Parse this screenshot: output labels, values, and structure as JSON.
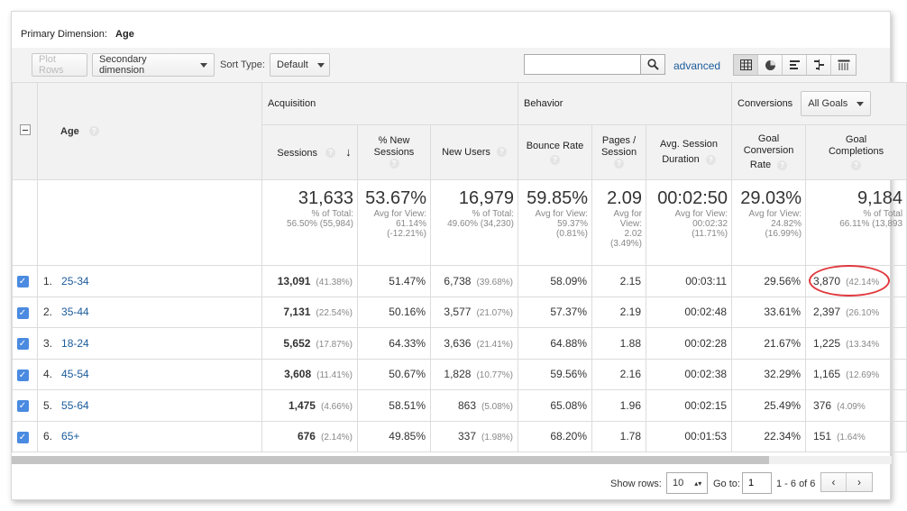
{
  "primary_dimension": {
    "label": "Primary Dimension:",
    "value": "Age"
  },
  "toolbar": {
    "plot_rows": "Plot Rows",
    "secondary_dimension": "Secondary dimension",
    "sort_type_label": "Sort Type:",
    "sort_type_value": "Default",
    "search_placeholder": "",
    "advanced": "advanced"
  },
  "table": {
    "groups": {
      "acquisition": "Acquisition",
      "behavior": "Behavior",
      "conversions": "Conversions",
      "goals_select": "All Goals"
    },
    "columns": {
      "age": "Age",
      "sessions": "Sessions",
      "new_sessions_1": "% New",
      "new_sessions_2": "Sessions",
      "new_users": "New Users",
      "bounce_rate": "Bounce Rate",
      "pages_1": "Pages /",
      "pages_2": "Session",
      "duration_1": "Avg. Session",
      "duration_2": "Duration",
      "conv_1": "Goal",
      "conv_2": "Conversion",
      "conv_3": "Rate",
      "comp_1": "Goal",
      "comp_2": "Completions"
    },
    "totals": {
      "sessions": {
        "value": "31,633",
        "sub1": "% of Total:",
        "sub2": "56.50% (55,984)"
      },
      "new_sessions": {
        "value": "53.67%",
        "sub1": "Avg for View:",
        "sub2": "61.14%",
        "sub3": "(-12.21%)"
      },
      "new_users": {
        "value": "16,979",
        "sub1": "% of Total:",
        "sub2": "49.60% (34,230)"
      },
      "bounce_rate": {
        "value": "59.85%",
        "sub1": "Avg for View:",
        "sub2": "59.37%",
        "sub3": "(0.81%)"
      },
      "pages": {
        "value": "2.09",
        "sub1": "Avg for",
        "sub2": "View:",
        "sub3": "2.02",
        "sub4": "(3.49%)"
      },
      "duration": {
        "value": "00:02:50",
        "sub1": "Avg for View:",
        "sub2": "00:02:32",
        "sub3": "(11.71%)"
      },
      "conv_rate": {
        "value": "29.03%",
        "sub1": "Avg for View:",
        "sub2": "24.82%",
        "sub3": "(16.99%)"
      },
      "completions": {
        "value": "9,184",
        "sub1": "% of Total",
        "sub2": "66.11% (13,893"
      }
    },
    "rows": [
      {
        "idx": "1.",
        "age": "25-34",
        "sessions": "13,091",
        "sessions_pct": "(41.38%)",
        "new_sessions": "51.47%",
        "new_users": "6,738",
        "new_users_pct": "(39.68%)",
        "bounce": "58.09%",
        "pages": "2.15",
        "duration": "00:03:11",
        "conv": "29.56%",
        "comp": "3,870",
        "comp_pct": "(42.14%"
      },
      {
        "idx": "2.",
        "age": "35-44",
        "sessions": "7,131",
        "sessions_pct": "(22.54%)",
        "new_sessions": "50.16%",
        "new_users": "3,577",
        "new_users_pct": "(21.07%)",
        "bounce": "57.37%",
        "pages": "2.19",
        "duration": "00:02:48",
        "conv": "33.61%",
        "comp": "2,397",
        "comp_pct": "(26.10%"
      },
      {
        "idx": "3.",
        "age": "18-24",
        "sessions": "5,652",
        "sessions_pct": "(17.87%)",
        "new_sessions": "64.33%",
        "new_users": "3,636",
        "new_users_pct": "(21.41%)",
        "bounce": "64.88%",
        "pages": "1.88",
        "duration": "00:02:28",
        "conv": "21.67%",
        "comp": "1,225",
        "comp_pct": "(13.34%"
      },
      {
        "idx": "4.",
        "age": "45-54",
        "sessions": "3,608",
        "sessions_pct": "(11.41%)",
        "new_sessions": "50.67%",
        "new_users": "1,828",
        "new_users_pct": "(10.77%)",
        "bounce": "59.56%",
        "pages": "2.16",
        "duration": "00:02:38",
        "conv": "32.29%",
        "comp": "1,165",
        "comp_pct": "(12.69%"
      },
      {
        "idx": "5.",
        "age": "55-64",
        "sessions": "1,475",
        "sessions_pct": "(4.66%)",
        "new_sessions": "58.51%",
        "new_users": "863",
        "new_users_pct": "(5.08%)",
        "bounce": "65.08%",
        "pages": "1.96",
        "duration": "00:02:15",
        "conv": "25.49%",
        "comp": "376",
        "comp_pct": "(4.09%"
      },
      {
        "idx": "6.",
        "age": "65+",
        "sessions": "676",
        "sessions_pct": "(2.14%)",
        "new_sessions": "49.85%",
        "new_users": "337",
        "new_users_pct": "(1.98%)",
        "bounce": "68.20%",
        "pages": "1.78",
        "duration": "00:01:53",
        "conv": "22.34%",
        "comp": "151",
        "comp_pct": "(1.64%"
      }
    ]
  },
  "footer": {
    "show_rows_label": "Show rows:",
    "show_rows_value": "10",
    "goto_label": "Go to:",
    "goto_value": "1",
    "range": "1 - 6 of 6",
    "prev": "‹",
    "next": "›"
  },
  "colors": {
    "link": "#1a5a9a",
    "checkbox": "#4a8ae0",
    "highlight": "#e0393e"
  }
}
